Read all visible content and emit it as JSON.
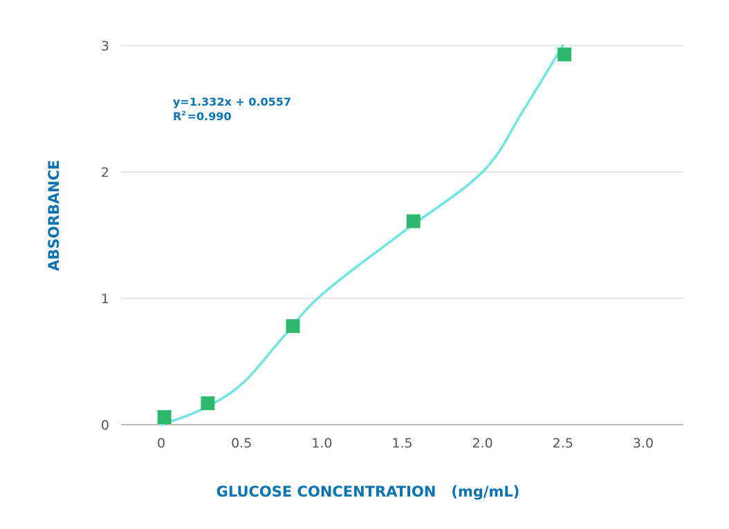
{
  "chart_data": {
    "type": "scatter",
    "title": "",
    "xlabel": "GLUCOSE CONCENTRATION   (mg/mL)",
    "ylabel": "ABSORBANCE",
    "xlim": [
      -0.25,
      3.25
    ],
    "ylim": [
      0,
      3.0
    ],
    "x_ticks": [
      "0",
      "0.5",
      "1.0",
      "1.5",
      "2.0",
      "2.5",
      "3.0"
    ],
    "x_tick_values": [
      0,
      0.5,
      1.0,
      1.5,
      2.0,
      2.5,
      3.0
    ],
    "y_ticks": [
      "0",
      "1",
      "2",
      "3"
    ],
    "y_tick_values": [
      0,
      1,
      2,
      3
    ],
    "grid": true,
    "annotation": {
      "equation": "y=1.332x + 0.0557",
      "r2_prefix": "R",
      "r2_sup": "2",
      "r2_value": "=0.990"
    },
    "series": [
      {
        "points": [
          {
            "x": 0.02,
            "y": 0.06
          },
          {
            "x": 0.29,
            "y": 0.17
          },
          {
            "x": 0.82,
            "y": 0.78
          },
          {
            "x": 1.57,
            "y": 1.61
          },
          {
            "x": 2.51,
            "y": 2.93
          }
        ],
        "marker": "square",
        "color": "#2db86e"
      }
    ],
    "fit_curve": {
      "color": "#6ee5e0",
      "points": [
        {
          "x": 0.0,
          "y": 0.0
        },
        {
          "x": 0.25,
          "y": 0.12
        },
        {
          "x": 0.5,
          "y": 0.32
        },
        {
          "x": 0.75,
          "y": 0.68
        },
        {
          "x": 1.0,
          "y": 1.03
        },
        {
          "x": 1.5,
          "y": 1.52
        },
        {
          "x": 2.0,
          "y": 2.0
        },
        {
          "x": 2.25,
          "y": 2.48
        },
        {
          "x": 2.5,
          "y": 3.0
        }
      ]
    }
  }
}
